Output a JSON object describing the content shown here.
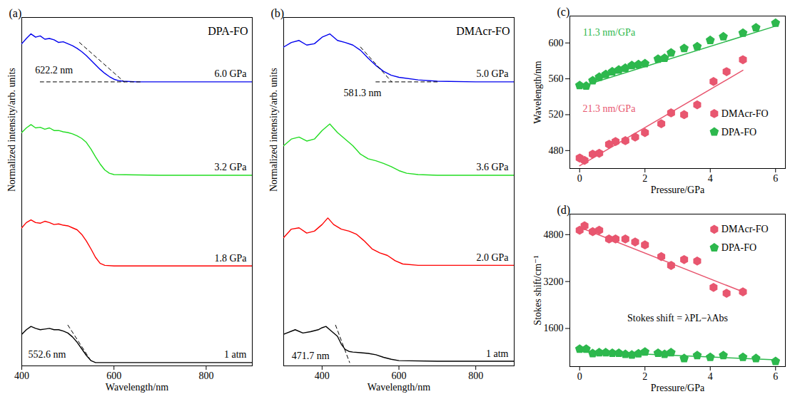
{
  "chart_data": [
    {
      "panel": "(a)",
      "type": "line",
      "title": "DPA-FO",
      "x_label": "Wavelength/nm",
      "y_label": "Normalized intensity/arb. units",
      "xlim": [
        400,
        900
      ],
      "xticks": [
        400,
        600,
        800
      ],
      "ylim": [
        0,
        5.3
      ],
      "tick_labels": "x",
      "series": [
        {
          "name": "1 atm",
          "color": "#000000",
          "x": [
            400,
            410,
            420,
            430,
            440,
            450,
            460,
            470,
            480,
            490,
            500,
            510,
            520,
            530,
            540,
            550,
            560,
            580,
            600,
            700,
            800,
            900
          ],
          "values": [
            0.48,
            0.55,
            0.6,
            0.57,
            0.55,
            0.56,
            0.57,
            0.55,
            0.55,
            0.53,
            0.5,
            0.44,
            0.36,
            0.26,
            0.16,
            0.08,
            0.05,
            0.05,
            0.05,
            0.05,
            0.05,
            0.05
          ]
        },
        {
          "name": "1.8 GPa",
          "color": "#ff0000",
          "x": [
            400,
            410,
            420,
            430,
            440,
            450,
            460,
            470,
            480,
            490,
            500,
            510,
            520,
            530,
            540,
            550,
            560,
            570,
            580,
            600,
            700,
            800,
            900
          ],
          "values": [
            2.1,
            2.18,
            2.22,
            2.18,
            2.17,
            2.2,
            2.18,
            2.15,
            2.16,
            2.14,
            2.13,
            2.1,
            2.07,
            2.0,
            1.9,
            1.78,
            1.65,
            1.56,
            1.53,
            1.52,
            1.52,
            1.52,
            1.52
          ]
        },
        {
          "name": "3.2 GPa",
          "color": "#22dd22",
          "x": [
            400,
            410,
            420,
            430,
            440,
            450,
            460,
            470,
            480,
            490,
            500,
            510,
            520,
            530,
            540,
            550,
            560,
            570,
            580,
            590,
            600,
            700,
            800,
            900
          ],
          "values": [
            3.55,
            3.62,
            3.67,
            3.62,
            3.63,
            3.6,
            3.62,
            3.58,
            3.58,
            3.56,
            3.55,
            3.53,
            3.5,
            3.46,
            3.4,
            3.3,
            3.18,
            3.07,
            2.98,
            2.93,
            2.91,
            2.9,
            2.9,
            2.9
          ]
        },
        {
          "name": "6.0 GPa",
          "color": "#0000ee",
          "x": [
            400,
            410,
            420,
            430,
            440,
            450,
            460,
            470,
            480,
            490,
            500,
            510,
            520,
            530,
            540,
            550,
            560,
            570,
            580,
            590,
            600,
            610,
            620,
            650,
            700,
            800,
            900
          ],
          "values": [
            4.9,
            4.98,
            5.05,
            5.0,
            5.02,
            4.97,
            4.98,
            4.96,
            4.92,
            4.93,
            4.9,
            4.87,
            4.83,
            4.78,
            4.72,
            4.65,
            4.58,
            4.51,
            4.45,
            4.4,
            4.36,
            4.34,
            4.33,
            4.32,
            4.32,
            4.32,
            4.32
          ]
        }
      ],
      "guides": [
        {
          "x": [
            500,
            552.6
          ],
          "values": [
            0.62,
            0.05
          ],
          "line_style": "dashed"
        },
        {
          "x": [
            525,
            622.2
          ],
          "values": [
            4.92,
            4.32
          ],
          "line_style": "dashed"
        },
        {
          "x": [
            440,
            660
          ],
          "values": [
            4.32,
            4.32
          ],
          "line_style": "dashed"
        }
      ],
      "annotations": [
        {
          "text": "552.6 nm",
          "x": 455,
          "y": 0.17
        },
        {
          "text": "622.2 nm",
          "x": 470,
          "y": 4.5
        }
      ]
    },
    {
      "panel": "(b)",
      "type": "line",
      "title": "DMAcr-FO",
      "x_label": "Wavelength/nm",
      "y_label": "Normalized intensity/arb. units",
      "xlim": [
        300,
        900
      ],
      "xticks": [
        400,
        600,
        800
      ],
      "ylim": [
        0,
        5.3
      ],
      "tick_labels": "x",
      "series": [
        {
          "name": "1 atm",
          "color": "#000000",
          "x": [
            300,
            330,
            350,
            370,
            390,
            400,
            410,
            420,
            440,
            450,
            460,
            470,
            480,
            500,
            520,
            540,
            560,
            580,
            600,
            700,
            800,
            900
          ],
          "values": [
            0.48,
            0.55,
            0.5,
            0.52,
            0.55,
            0.58,
            0.6,
            0.55,
            0.45,
            0.33,
            0.25,
            0.22,
            0.21,
            0.2,
            0.19,
            0.17,
            0.13,
            0.1,
            0.08,
            0.07,
            0.07,
            0.07
          ]
        },
        {
          "name": "2.0 GPa",
          "color": "#ff0000",
          "x": [
            300,
            320,
            340,
            360,
            380,
            400,
            415,
            430,
            450,
            470,
            490,
            510,
            530,
            550,
            570,
            590,
            610,
            650,
            700,
            800,
            900
          ],
          "values": [
            1.95,
            2.08,
            2.1,
            2.02,
            2.05,
            2.15,
            2.25,
            2.15,
            2.08,
            2.05,
            2.0,
            1.9,
            1.78,
            1.72,
            1.68,
            1.6,
            1.55,
            1.53,
            1.53,
            1.53,
            1.53
          ]
        },
        {
          "name": "3.6 GPa",
          "color": "#22dd22",
          "x": [
            300,
            320,
            340,
            360,
            380,
            400,
            420,
            440,
            460,
            480,
            500,
            520,
            540,
            560,
            580,
            600,
            620,
            650,
            700,
            800,
            900
          ],
          "values": [
            3.35,
            3.45,
            3.48,
            3.42,
            3.45,
            3.58,
            3.68,
            3.55,
            3.45,
            3.35,
            3.22,
            3.15,
            3.12,
            3.08,
            3.03,
            2.97,
            2.93,
            2.91,
            2.9,
            2.9,
            2.9
          ]
        },
        {
          "name": "5.0 GPa",
          "color": "#0000ee",
          "x": [
            300,
            320,
            340,
            360,
            380,
            400,
            420,
            440,
            460,
            480,
            500,
            520,
            540,
            560,
            580,
            600,
            650,
            700,
            800,
            900
          ],
          "values": [
            4.85,
            4.92,
            4.95,
            4.88,
            4.9,
            5.0,
            5.05,
            4.95,
            4.92,
            4.88,
            4.8,
            4.68,
            4.57,
            4.48,
            4.42,
            4.39,
            4.35,
            4.33,
            4.32,
            4.32
          ]
        }
      ],
      "guides": [
        {
          "x": [
            435,
            471.7
          ],
          "values": [
            0.62,
            0.05
          ],
          "line_style": "dashed"
        },
        {
          "x": [
            500,
            581.3
          ],
          "values": [
            4.85,
            4.32
          ],
          "line_style": "dashed"
        },
        {
          "x": [
            540,
            700
          ],
          "values": [
            4.32,
            4.32
          ],
          "line_style": "dashed"
        }
      ],
      "annotations": [
        {
          "text": "471.7 nm",
          "x": 370,
          "y": 0.15
        },
        {
          "text": "581.3 nm",
          "x": 505,
          "y": 4.15
        }
      ]
    },
    {
      "panel": "(c)",
      "type": "scatter",
      "x_label": "Pressure/GPa",
      "y_label": "Wavelength/nm",
      "xlim": [
        -0.3,
        6.3
      ],
      "xticks": [
        0,
        2,
        4,
        6
      ],
      "ylim": [
        460,
        630
      ],
      "yticks": [
        480,
        520,
        560,
        600
      ],
      "legend": "lower right",
      "series": [
        {
          "name": "DMAcr-FO",
          "color": "#e8566f",
          "marker": "hexagon",
          "x": [
            0,
            0.15,
            0.4,
            0.6,
            0.9,
            1.1,
            1.4,
            1.7,
            2.0,
            2.5,
            2.8,
            3.2,
            3.6,
            4.1,
            4.5,
            5.0
          ],
          "values": [
            471.7,
            469,
            476,
            477,
            487,
            490,
            491,
            495,
            500,
            510,
            522,
            520,
            531,
            557,
            568,
            581.3
          ],
          "fit": {
            "x": [
              0,
              5
            ],
            "values": [
              463,
              569.5
            ]
          }
        },
        {
          "name": "DPA-FO",
          "color": "#2db84d",
          "marker": "pentagon",
          "x": [
            0,
            0.2,
            0.4,
            0.6,
            0.8,
            1.0,
            1.2,
            1.4,
            1.6,
            1.8,
            2.0,
            2.4,
            2.6,
            2.8,
            3.2,
            3.6,
            4.0,
            4.4,
            5.0,
            5.4,
            6.0
          ],
          "values": [
            552.6,
            552,
            558,
            562,
            565,
            568,
            570,
            572,
            575,
            576,
            577,
            582,
            583,
            589,
            594,
            596,
            603,
            607,
            611,
            617,
            622.2
          ],
          "fit": {
            "x": [
              0,
              6
            ],
            "values": [
              551,
              618.8
            ]
          }
        }
      ],
      "annotations": [
        {
          "text": "11.3 nm/GPa",
          "x": 0.9,
          "y": 612,
          "color": "#2db84d"
        },
        {
          "text": "21.3 nm/GPa",
          "x": 0.9,
          "y": 527,
          "color": "#e8566f"
        }
      ]
    },
    {
      "panel": "(d)",
      "type": "scatter",
      "x_label": "Pressure/GPa",
      "y_label": "Stokes shift/cm⁻¹",
      "xlim": [
        -0.3,
        6.3
      ],
      "xticks": [
        0,
        2,
        4,
        6
      ],
      "ylim": [
        300,
        5500
      ],
      "yticks": [
        1600,
        3200,
        4800
      ],
      "legend": "upper right",
      "series": [
        {
          "name": "DMAcr-FO",
          "color": "#e8566f",
          "marker": "hexagon",
          "x": [
            0,
            0.15,
            0.4,
            0.6,
            0.9,
            1.1,
            1.4,
            1.7,
            2.0,
            2.5,
            2.8,
            3.2,
            3.6,
            4.1,
            4.5,
            5.0
          ],
          "values": [
            4950,
            5100,
            4900,
            4950,
            4650,
            4650,
            4650,
            4550,
            4450,
            4050,
            3750,
            3950,
            3900,
            3000,
            2800,
            2850
          ],
          "fit": {
            "x": [
              0,
              5
            ],
            "values": [
              5050,
              2850
            ]
          }
        },
        {
          "name": "DPA-FO",
          "color": "#2db84d",
          "marker": "pentagon",
          "x": [
            0,
            0.2,
            0.4,
            0.6,
            0.8,
            1.0,
            1.2,
            1.4,
            1.6,
            1.8,
            2.0,
            2.4,
            2.6,
            2.8,
            3.2,
            3.6,
            4.0,
            4.4,
            5.0,
            5.4,
            6.0
          ],
          "values": [
            900,
            900,
            750,
            780,
            780,
            760,
            760,
            720,
            700,
            740,
            800,
            760,
            720,
            780,
            580,
            680,
            620,
            680,
            620,
            580,
            480
          ],
          "fit": {
            "x": [
              0,
              6
            ],
            "values": [
              820,
              530
            ]
          }
        }
      ],
      "annotations": [
        {
          "text": "Stokes shift = λPL−λAbs",
          "x": 3,
          "y": 1950
        }
      ]
    }
  ]
}
